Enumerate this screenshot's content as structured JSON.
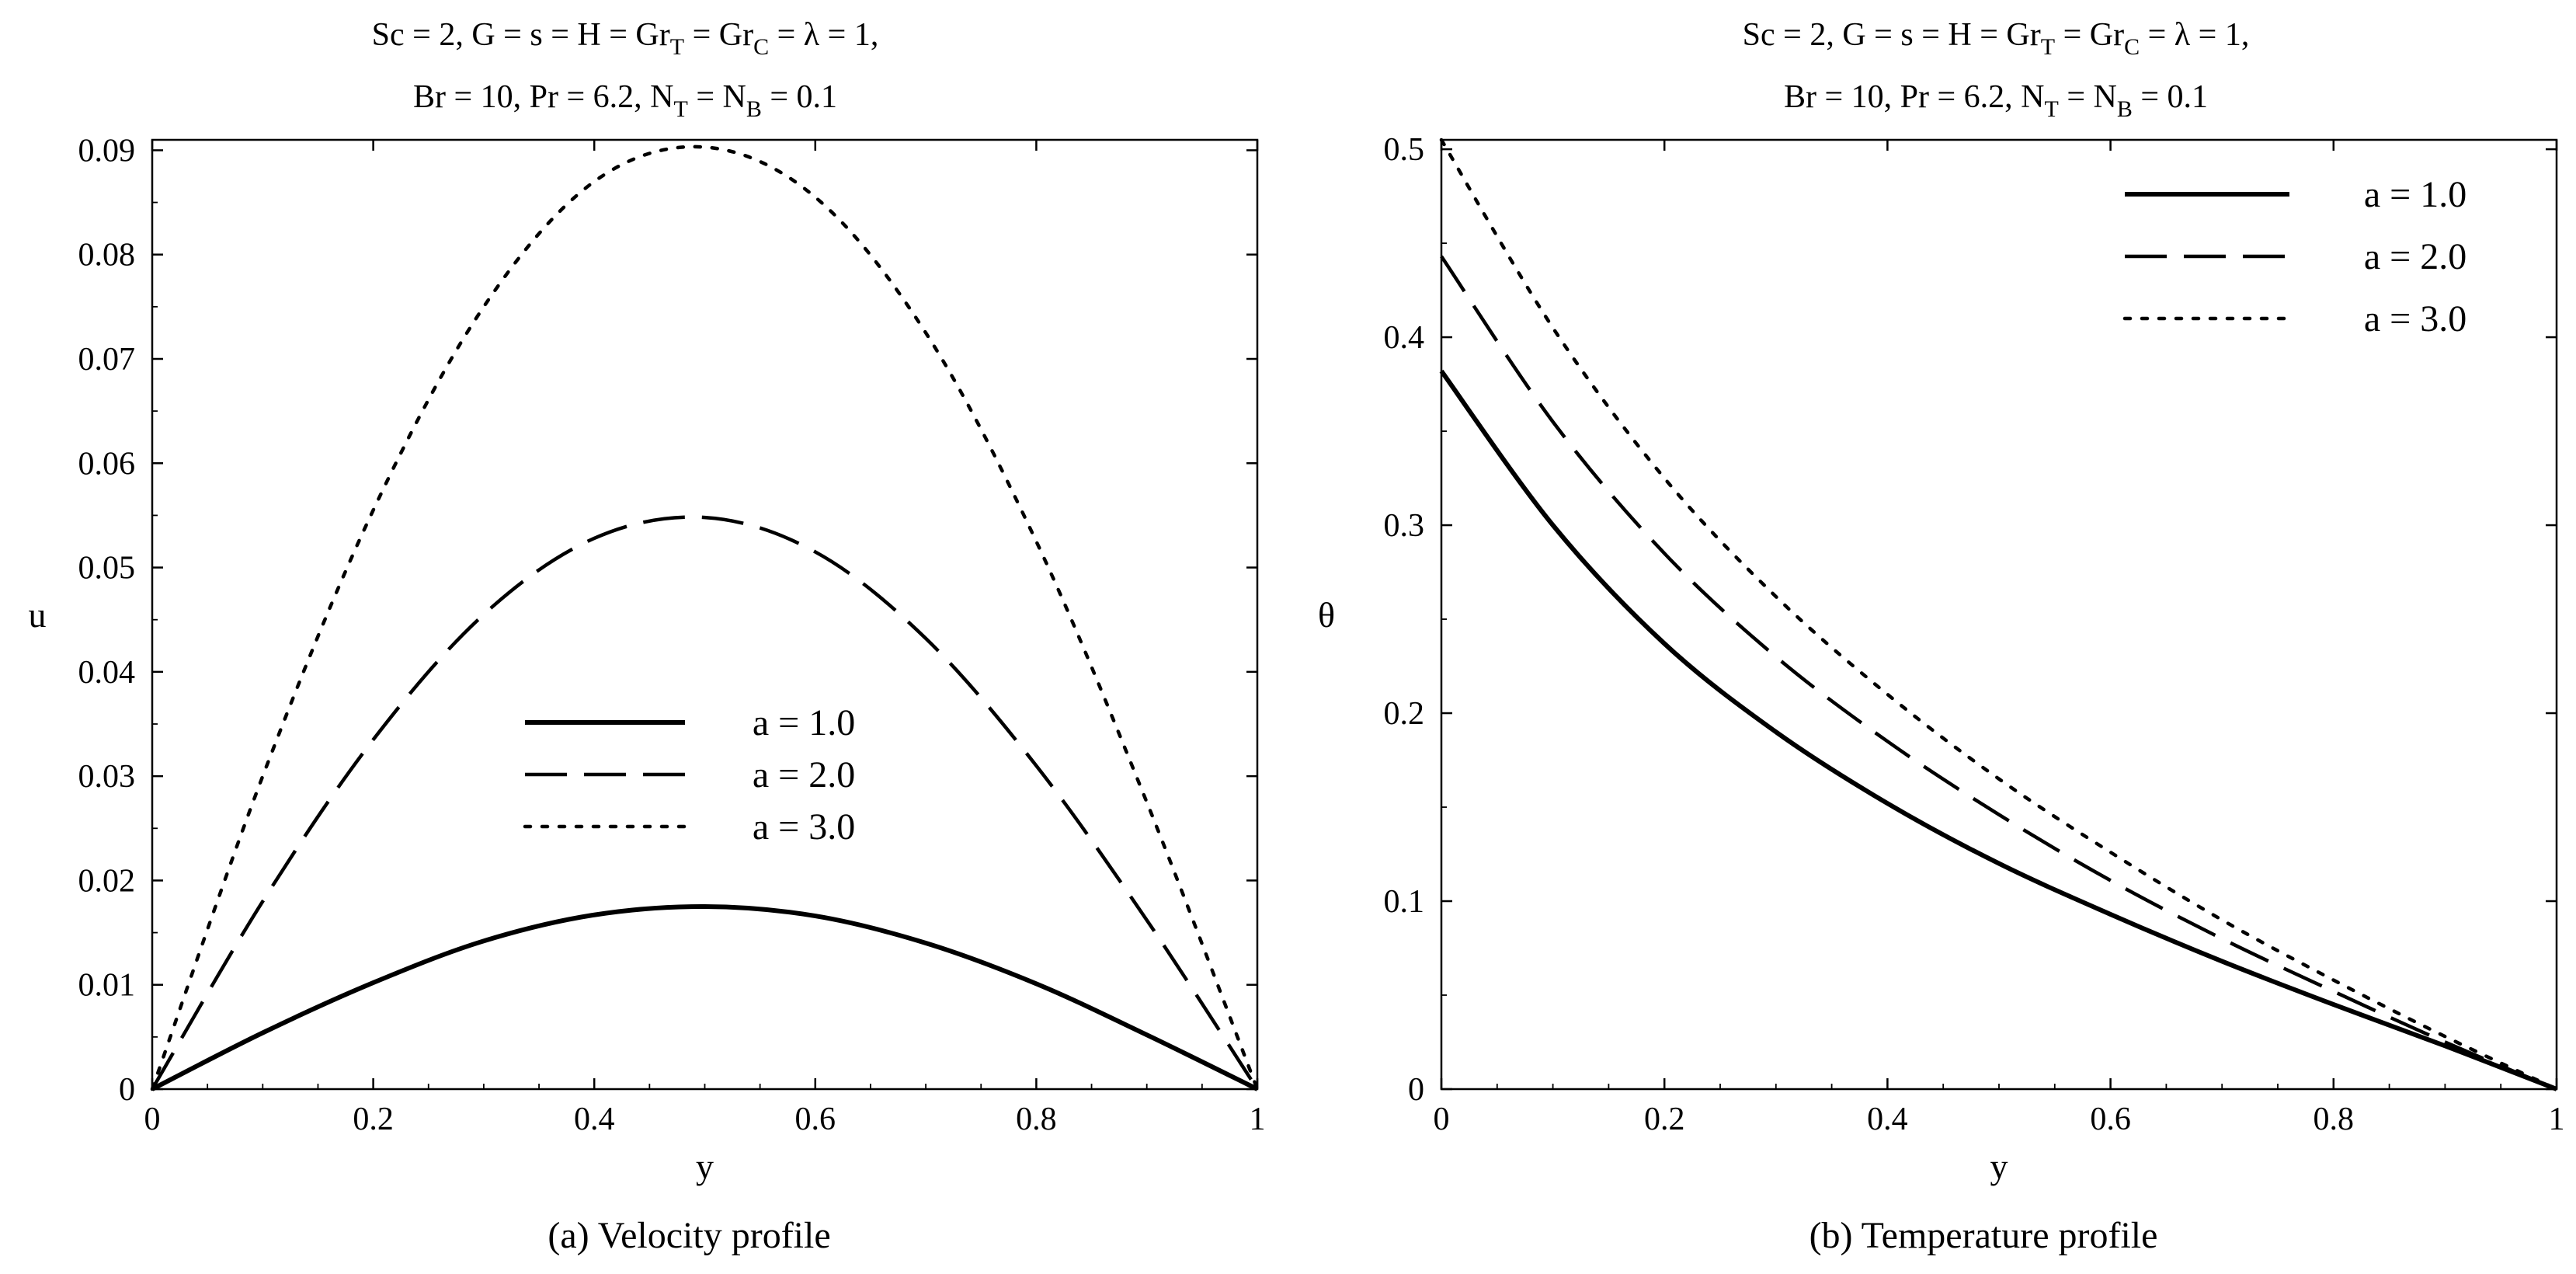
{
  "chart_data": [
    {
      "type": "line",
      "title_line1": "Sc = 2, G = s = H =  Gr",
      "title_sub_T": "T",
      "title_eq1": " = Gr",
      "title_sub_C": "C",
      "title_tail1": " = λ = 1,",
      "title_line2_a": "Br = 10, Pr = 6.2, N",
      "title_sub2_T": "T",
      "title_line2_b": " = N",
      "title_sub2_B": "B",
      "title_line2_c": " = 0.1",
      "xlabel": "y",
      "ylabel": "u",
      "caption": "(a)   Velocity profile",
      "xlim": [
        0,
        1
      ],
      "ylim": [
        0,
        0.091
      ],
      "xticks": [
        0,
        0.2,
        0.4,
        0.6,
        0.8,
        1
      ],
      "xtick_labels": [
        "0",
        "0.2",
        "0.4",
        "0.6",
        "0.8",
        "1"
      ],
      "yticks": [
        0,
        0.01,
        0.02,
        0.03,
        0.04,
        0.05,
        0.06,
        0.07,
        0.08,
        0.09
      ],
      "ytick_labels": [
        "0",
        "0.01",
        "0.02",
        "0.03",
        "0.04",
        "0.05",
        "0.06",
        "0.07",
        "0.08",
        "0.09"
      ],
      "legend_position": "center",
      "series": [
        {
          "name": "a = 1.0",
          "style": "solid",
          "x": [
            0,
            0.1,
            0.2,
            0.3,
            0.4,
            0.5,
            0.6,
            0.7,
            0.8,
            0.9,
            1
          ],
          "values": [
            0,
            0.0054,
            0.0102,
            0.0142,
            0.0167,
            0.0175,
            0.0166,
            0.014,
            0.0101,
            0.0052,
            0
          ]
        },
        {
          "name": "a = 2.0",
          "style": "dashed",
          "x": [
            0,
            0.1,
            0.2,
            0.3,
            0.4,
            0.5,
            0.6,
            0.7,
            0.8,
            0.9,
            1
          ],
          "values": [
            0,
            0.018,
            0.0335,
            0.0455,
            0.0528,
            0.0548,
            0.0515,
            0.0432,
            0.031,
            0.0162,
            0
          ]
        },
        {
          "name": "a = 3.0",
          "style": "dotted",
          "x": [
            0,
            0.1,
            0.2,
            0.3,
            0.4,
            0.5,
            0.6,
            0.7,
            0.8,
            0.9,
            1
          ],
          "values": [
            0,
            0.03,
            0.0555,
            0.075,
            0.087,
            0.0903,
            0.0855,
            0.0725,
            0.0525,
            0.0275,
            0
          ]
        }
      ]
    },
    {
      "type": "line",
      "title_line1": "Sc = 2, G = s = H =  Gr",
      "title_sub_T": "T",
      "title_eq1": " = Gr",
      "title_sub_C": "C",
      "title_tail1": " = λ = 1,",
      "title_line2_a": "Br = 10, Pr = 6.2, N",
      "title_sub2_T": "T",
      "title_line2_b": " = N",
      "title_sub2_B": "B",
      "title_line2_c": " = 0.1",
      "xlabel": "y",
      "ylabel": "θ",
      "caption": "(b)  Temperature profile",
      "xlim": [
        0,
        1
      ],
      "ylim": [
        0,
        0.505
      ],
      "xticks": [
        0,
        0.2,
        0.4,
        0.6,
        0.8,
        1
      ],
      "xtick_labels": [
        "0",
        "0.2",
        "0.4",
        "0.6",
        "0.8",
        "1"
      ],
      "yticks": [
        0,
        0.1,
        0.2,
        0.3,
        0.4,
        0.5
      ],
      "ytick_labels": [
        "0",
        "0.1",
        "0.2",
        "0.3",
        "0.4",
        "0.5"
      ],
      "legend_position": "top-right",
      "series": [
        {
          "name": "a = 1.0",
          "style": "solid",
          "x": [
            0,
            0.1,
            0.2,
            0.3,
            0.4,
            0.5,
            0.6,
            0.7,
            0.8,
            0.9,
            1
          ],
          "values": [
            0.382,
            0.3,
            0.237,
            0.19,
            0.152,
            0.12,
            0.093,
            0.068,
            0.045,
            0.023,
            0
          ]
        },
        {
          "name": "a = 2.0",
          "style": "dashed",
          "x": [
            0,
            0.1,
            0.2,
            0.3,
            0.4,
            0.5,
            0.6,
            0.7,
            0.8,
            0.9,
            1
          ],
          "values": [
            0.443,
            0.355,
            0.285,
            0.23,
            0.185,
            0.146,
            0.111,
            0.08,
            0.052,
            0.025,
            0
          ]
        },
        {
          "name": "a = 3.0",
          "style": "dotted",
          "x": [
            0,
            0.1,
            0.2,
            0.3,
            0.4,
            0.5,
            0.6,
            0.7,
            0.8,
            0.9,
            1
          ],
          "values": [
            0.505,
            0.405,
            0.325,
            0.262,
            0.21,
            0.165,
            0.126,
            0.09,
            0.058,
            0.028,
            0
          ]
        }
      ]
    }
  ]
}
